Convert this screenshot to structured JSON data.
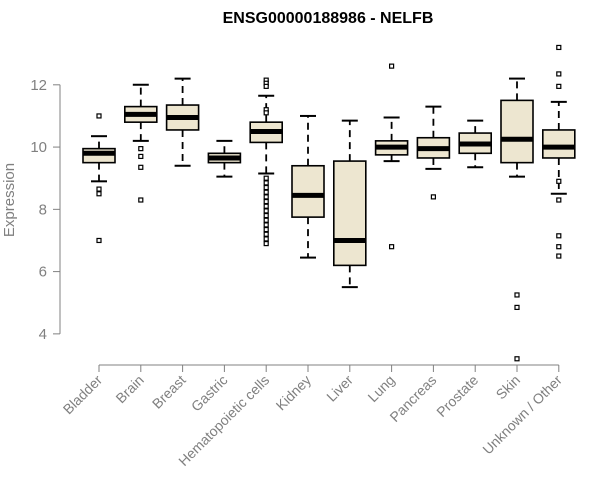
{
  "chart_data": {
    "type": "box",
    "title": "ENSG00000188986 - NELFB",
    "xlabel": "",
    "ylabel": "Expression",
    "ylim": [
      3.0,
      13.6
    ],
    "yticks": [
      4,
      6,
      8,
      10,
      12
    ],
    "colors": {
      "box_fill": "#ede6d0",
      "stroke": "#000000",
      "axis": "#808080"
    },
    "categories": [
      "Bladder",
      "Brain",
      "Breast",
      "Gastric",
      "Hematopoietic cells",
      "Kidney",
      "Liver",
      "Lung",
      "Pancreas",
      "Prostate",
      "Skin",
      "Unknown / Other"
    ],
    "boxes": [
      {
        "category": "Bladder",
        "whisker_low": 8.9,
        "q1": 9.5,
        "median": 9.8,
        "q3": 9.95,
        "whisker_high": 10.35,
        "outliers": [
          11.0,
          8.65,
          8.5,
          7.0
        ]
      },
      {
        "category": "Brain",
        "whisker_low": 10.2,
        "q1": 10.8,
        "median": 11.05,
        "q3": 11.3,
        "whisker_high": 12.0,
        "outliers": [
          9.95,
          9.7,
          9.35,
          8.3
        ]
      },
      {
        "category": "Breast",
        "whisker_low": 9.4,
        "q1": 10.55,
        "median": 10.95,
        "q3": 11.35,
        "whisker_high": 12.2,
        "outliers": []
      },
      {
        "category": "Gastric",
        "whisker_low": 9.05,
        "q1": 9.5,
        "median": 9.65,
        "q3": 9.8,
        "whisker_high": 10.2,
        "outliers": []
      },
      {
        "category": "Hematopoietic cells",
        "whisker_low": 9.15,
        "q1": 10.15,
        "median": 10.5,
        "q3": 10.8,
        "whisker_high": 11.65,
        "outliers": [
          12.15,
          12.05,
          11.95,
          11.2,
          11.1,
          9.0,
          8.85,
          8.7,
          8.55,
          8.4,
          8.25,
          8.1,
          7.95,
          7.8,
          7.65,
          7.5,
          7.35,
          7.2,
          7.05,
          6.9
        ]
      },
      {
        "category": "Kidney",
        "whisker_low": 6.45,
        "q1": 7.75,
        "median": 8.45,
        "q3": 9.4,
        "whisker_high": 11.0,
        "outliers": []
      },
      {
        "category": "Liver",
        "whisker_low": 5.5,
        "q1": 6.2,
        "median": 7.0,
        "q3": 9.55,
        "whisker_high": 10.85,
        "outliers": []
      },
      {
        "category": "Lung",
        "whisker_low": 9.55,
        "q1": 9.75,
        "median": 10.0,
        "q3": 10.2,
        "whisker_high": 10.95,
        "outliers": [
          12.6,
          6.8
        ]
      },
      {
        "category": "Pancreas",
        "whisker_low": 9.3,
        "q1": 9.65,
        "median": 9.95,
        "q3": 10.3,
        "whisker_high": 11.3,
        "outliers": [
          8.4
        ]
      },
      {
        "category": "Prostate",
        "whisker_low": 9.35,
        "q1": 9.8,
        "median": 10.1,
        "q3": 10.45,
        "whisker_high": 10.85,
        "outliers": []
      },
      {
        "category": "Skin",
        "whisker_low": 9.05,
        "q1": 9.5,
        "median": 10.25,
        "q3": 11.5,
        "whisker_high": 12.2,
        "outliers": [
          5.25,
          4.85,
          3.2
        ]
      },
      {
        "category": "Unknown / Other",
        "whisker_low": 8.5,
        "q1": 9.65,
        "median": 10.0,
        "q3": 10.55,
        "whisker_high": 11.45,
        "outliers": [
          13.2,
          12.35,
          11.95,
          8.9,
          8.3,
          7.15,
          6.8,
          6.5
        ]
      }
    ]
  }
}
